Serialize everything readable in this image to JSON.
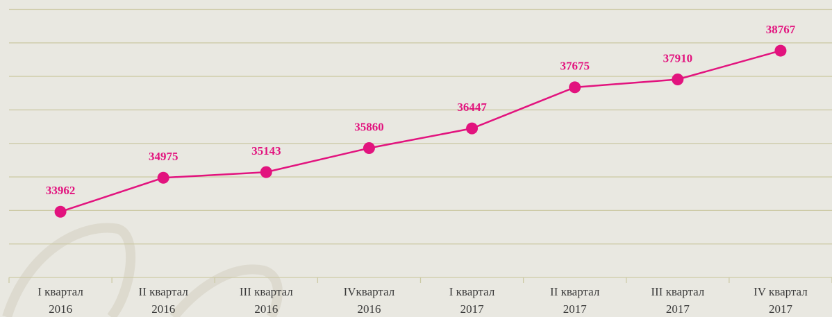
{
  "chart_data": {
    "type": "line",
    "categories": [
      [
        "I квартал",
        "2016"
      ],
      [
        "II квартал",
        "2016"
      ],
      [
        "III квартал",
        "2016"
      ],
      [
        "IVквартал",
        "2016"
      ],
      [
        "I квартал",
        "2017"
      ],
      [
        "II квартал",
        "2017"
      ],
      [
        "III квартал",
        "2017"
      ],
      [
        "IV квартал",
        "2017"
      ]
    ],
    "values": [
      33962,
      34975,
      35143,
      35860,
      36447,
      37675,
      37910,
      38767
    ],
    "color": "#e2137e",
    "ylim": [
      32000,
      40000
    ],
    "yticks": [
      32000,
      33000,
      34000,
      35000,
      36000,
      37000,
      38000,
      39000,
      40000
    ],
    "grid": true
  }
}
